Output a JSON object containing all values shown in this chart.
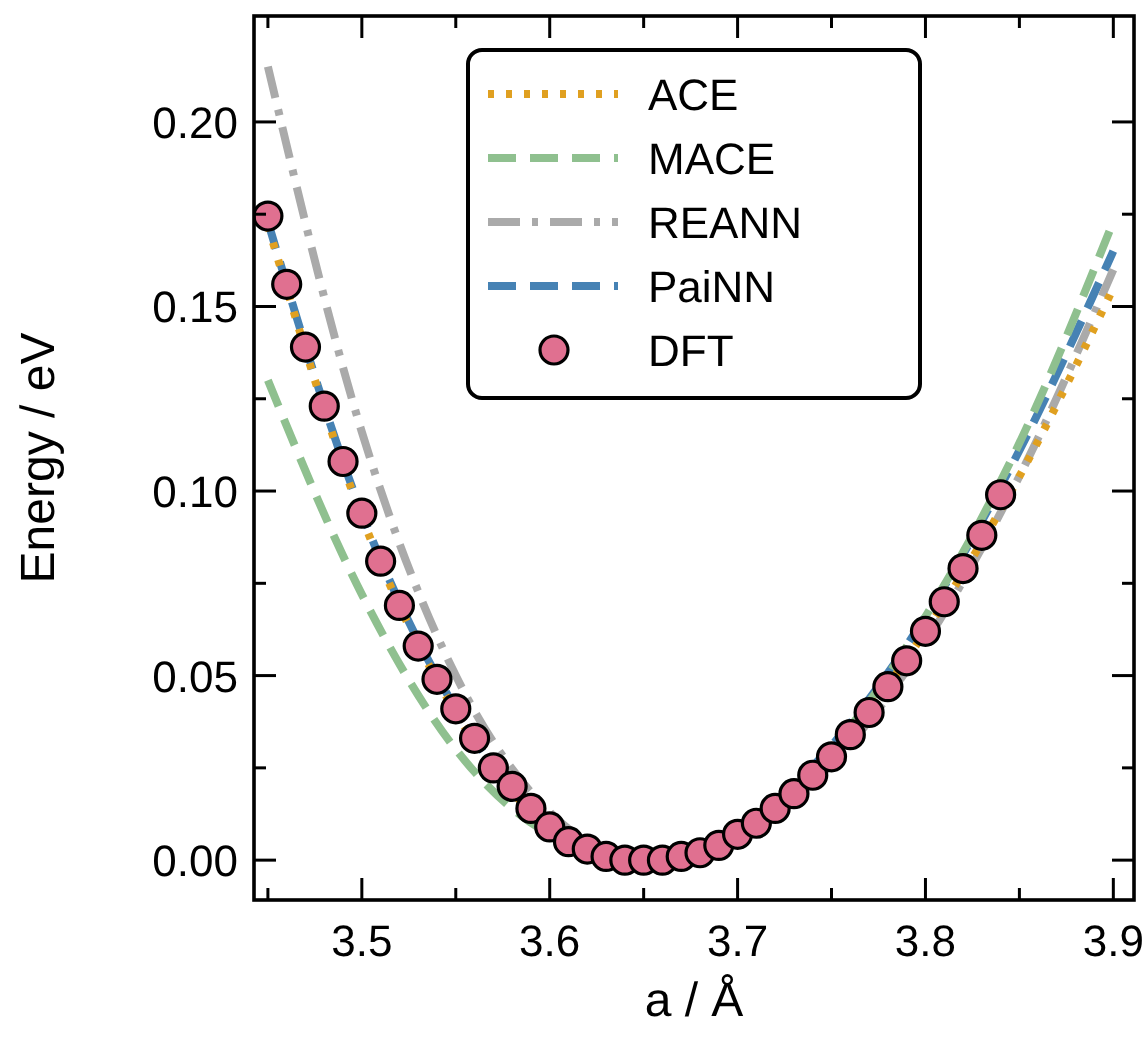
{
  "chart_data": {
    "type": "line",
    "xlabel": "a / Å",
    "ylabel": "Energy / eV",
    "xlim": [
      3.4426,
      3.911
    ],
    "ylim": [
      -0.0108,
      0.2287
    ],
    "xticks": [
      {
        "value": 3.45,
        "label": null
      },
      3.5,
      {
        "value": 3.55,
        "label": null
      },
      3.6,
      {
        "value": 3.65,
        "label": null
      },
      3.7,
      {
        "value": 3.75,
        "label": null
      },
      3.8,
      {
        "value": 3.85,
        "label": null
      },
      3.9
    ],
    "yticks": [
      {
        "value": 0,
        "label": "0.00"
      },
      {
        "value": 0.025,
        "label": null
      },
      {
        "value": 0.05,
        "label": "0.05"
      },
      {
        "value": 0.075,
        "label": null
      },
      {
        "value": 0.1,
        "label": "0.10"
      },
      {
        "value": 0.125,
        "label": null
      },
      {
        "value": 0.15,
        "label": "0.15"
      },
      {
        "value": 0.175,
        "label": null
      },
      {
        "value": 0.2,
        "label": "0.20"
      }
    ],
    "legend": "top",
    "grid": false,
    "series": [
      {
        "name": "ACE",
        "color": "#e0a020",
        "line_style": "dotted",
        "x": [
          3.45,
          3.5,
          3.55,
          3.6,
          3.65,
          3.7,
          3.75,
          3.8,
          3.85,
          3.9
        ],
        "values": [
          0.172,
          0.093,
          0.04,
          0.009,
          0.0,
          0.007,
          0.028,
          0.062,
          0.104,
          0.155
        ]
      },
      {
        "name": "MACE",
        "color": "#8fc08f",
        "line_style": "dashed",
        "x": [
          3.45,
          3.5,
          3.55,
          3.6,
          3.65,
          3.7,
          3.75,
          3.8,
          3.85,
          3.9
        ],
        "values": [
          0.13,
          0.072,
          0.03,
          0.007,
          0.0,
          0.008,
          0.03,
          0.066,
          0.113,
          0.173
        ]
      },
      {
        "name": "REANN",
        "color": "#aaaaaa",
        "line_style": "dashdot",
        "x": [
          3.45,
          3.5,
          3.55,
          3.6,
          3.65,
          3.7,
          3.75,
          3.8,
          3.85,
          3.9
        ],
        "values": [
          0.215,
          0.116,
          0.05,
          0.013,
          0.0,
          0.006,
          0.026,
          0.059,
          0.104,
          0.16
        ]
      },
      {
        "name": "PaiNN",
        "color": "#4682b4",
        "line_style": "dashed",
        "x": [
          3.45,
          3.5,
          3.55,
          3.6,
          3.65,
          3.7,
          3.75,
          3.8,
          3.85,
          3.9
        ],
        "values": [
          0.173,
          0.094,
          0.041,
          0.009,
          0.0,
          0.008,
          0.031,
          0.066,
          0.111,
          0.165
        ]
      },
      {
        "name": "DFT",
        "type": "scatter",
        "marker": "circle",
        "color": "#e07090",
        "x": [
          3.45,
          3.46,
          3.47,
          3.48,
          3.49,
          3.5,
          3.51,
          3.52,
          3.53,
          3.54,
          3.55,
          3.56,
          3.57,
          3.58,
          3.59,
          3.6,
          3.61,
          3.62,
          3.63,
          3.64,
          3.65,
          3.66,
          3.67,
          3.68,
          3.69,
          3.7,
          3.71,
          3.72,
          3.73,
          3.74,
          3.75,
          3.76,
          3.77,
          3.78,
          3.79,
          3.8,
          3.81,
          3.82,
          3.83,
          3.84
        ],
        "values": [
          0.1745,
          0.156,
          0.139,
          0.123,
          0.108,
          0.094,
          0.081,
          0.069,
          0.058,
          0.049,
          0.041,
          0.033,
          0.025,
          0.02,
          0.014,
          0.009,
          0.005,
          0.003,
          0.001,
          0.0,
          0.0,
          0.0,
          0.001,
          0.002,
          0.004,
          0.007,
          0.01,
          0.014,
          0.018,
          0.023,
          0.028,
          0.034,
          0.04,
          0.047,
          0.054,
          0.062,
          0.07,
          0.079,
          0.088,
          0.099
        ]
      }
    ]
  }
}
